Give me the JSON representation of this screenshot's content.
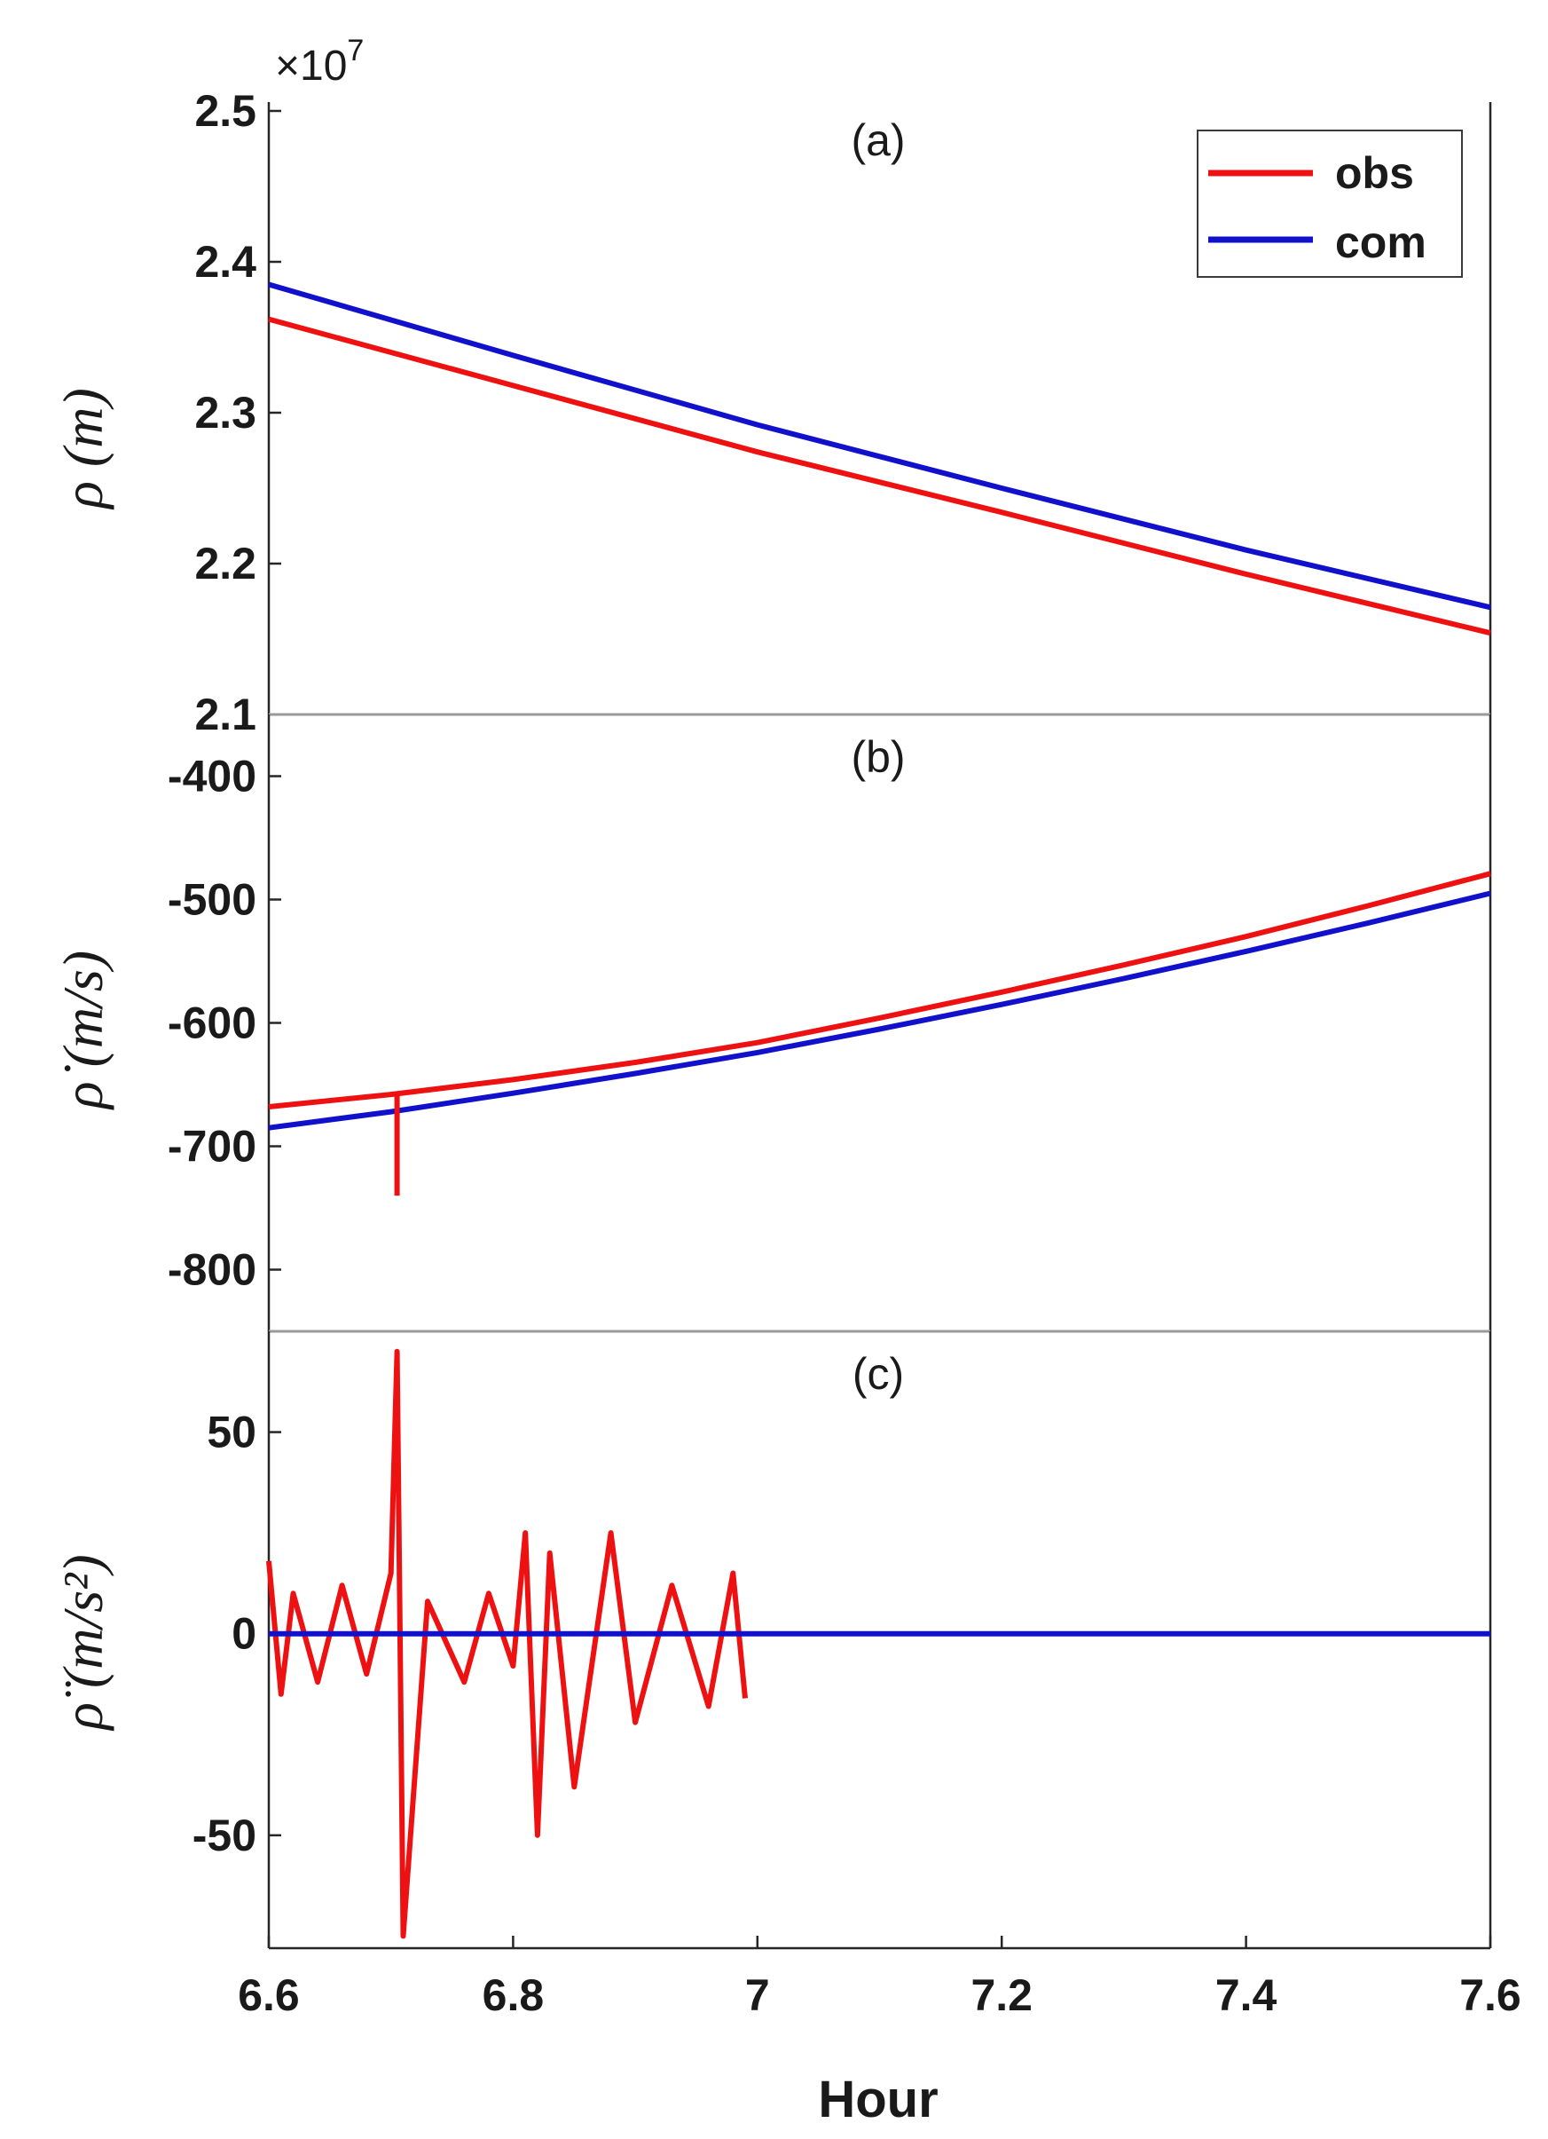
{
  "chart_data": [
    {
      "panel": "(a)",
      "type": "line",
      "ylabel": "ρ (m)",
      "xlim": [
        6.6,
        7.6
      ],
      "ylim": [
        21000000,
        25000000
      ],
      "exponent": "×10^7",
      "yticks": [
        2.1,
        2.2,
        2.3,
        2.4,
        2.5
      ],
      "ytick_labels": [
        "2.1",
        "2.2",
        "2.3",
        "2.4",
        "2.5"
      ],
      "legend": [
        "obs",
        "com"
      ],
      "legend_position": "top-right",
      "series": [
        {
          "name": "obs",
          "color": "#ee1111",
          "x": [
            6.6,
            6.8,
            7.0,
            7.2,
            7.4,
            7.6
          ],
          "y": [
            23620000,
            23180000,
            22740000,
            22340000,
            21930000,
            21540000
          ]
        },
        {
          "name": "com",
          "color": "#1111cc",
          "x": [
            6.6,
            6.8,
            7.0,
            7.2,
            7.4,
            7.6
          ],
          "y": [
            23850000,
            23380000,
            22920000,
            22500000,
            22090000,
            21710000
          ]
        }
      ]
    },
    {
      "panel": "(b)",
      "type": "line",
      "ylabel": "ρ̇ (m/s)",
      "xlim": [
        6.6,
        7.6
      ],
      "ylim": [
        -850,
        -350
      ],
      "yticks": [
        -800,
        -700,
        -600,
        -500,
        -400
      ],
      "ytick_labels": [
        "-800",
        "-700",
        "-600",
        "-500",
        "-400"
      ],
      "series": [
        {
          "name": "obs",
          "color": "#ee1111",
          "x": [
            6.6,
            6.7,
            6.8,
            6.9,
            7.0,
            7.1,
            7.2,
            7.3,
            7.4,
            7.5,
            7.6
          ],
          "y": [
            -668,
            -658,
            -646,
            -632,
            -616,
            -596,
            -575,
            -553,
            -530,
            -505,
            -479
          ]
        },
        {
          "name": "com",
          "color": "#1111cc",
          "x": [
            6.6,
            6.7,
            6.8,
            6.9,
            7.0,
            7.1,
            7.2,
            7.3,
            7.4,
            7.5,
            7.6
          ],
          "y": [
            -685,
            -672,
            -657,
            -641,
            -624,
            -605,
            -585,
            -564,
            -542,
            -519,
            -495
          ]
        }
      ],
      "annotations": [
        {
          "name": "obs spike",
          "x": 6.705,
          "y": -740
        }
      ]
    },
    {
      "panel": "(c)",
      "type": "line",
      "ylabel": "ρ̈ (m/s²)",
      "xlim": [
        6.6,
        7.6
      ],
      "ylim": [
        -78,
        75
      ],
      "yticks": [
        -50,
        0,
        50
      ],
      "ytick_labels": [
        "-50",
        "0",
        "50"
      ],
      "xticks": [
        6.6,
        6.8,
        7.0,
        7.2,
        7.4,
        7.6
      ],
      "xtick_labels": [
        "6.6",
        "6.8",
        "7",
        "7.2",
        "7.4",
        "7.6"
      ],
      "xlabel": "Hour",
      "series": [
        {
          "name": "obs",
          "color": "#ee1111",
          "x": [
            6.6,
            6.61,
            6.62,
            6.64,
            6.66,
            6.68,
            6.7,
            6.705,
            6.71,
            6.73,
            6.76,
            6.78,
            6.8,
            6.81,
            6.82,
            6.83,
            6.85,
            6.88,
            6.9,
            6.93,
            6.96,
            6.98,
            6.99
          ],
          "y": [
            18,
            -15,
            10,
            -12,
            12,
            -10,
            15,
            70,
            -75,
            8,
            -12,
            10,
            -8,
            25,
            -50,
            20,
            -38,
            25,
            -22,
            12,
            -18,
            15,
            -16
          ]
        },
        {
          "name": "com",
          "color": "#1111cc",
          "x": [
            6.6,
            7.6
          ],
          "y": [
            0,
            0
          ]
        }
      ]
    }
  ]
}
